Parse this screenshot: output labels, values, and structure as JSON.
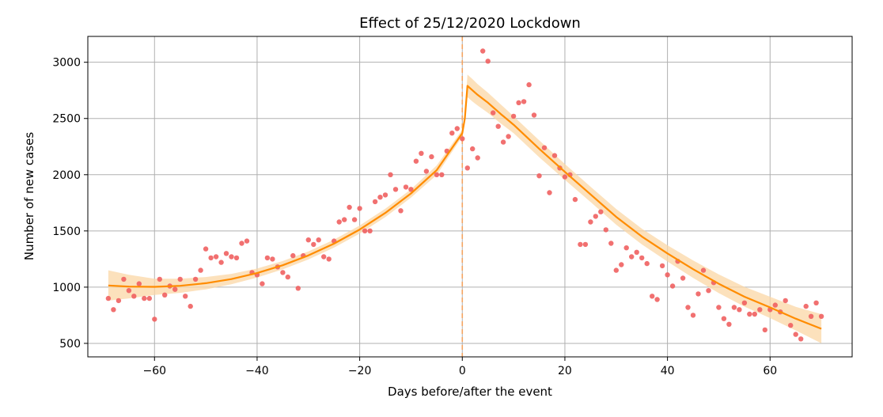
{
  "chart_data": {
    "type": "scatter",
    "title": "Effect of 25/12/2020 Lockdown",
    "xlabel": "Days before/after the event",
    "ylabel": "Number of new cases",
    "xlim": [
      -73,
      76
    ],
    "ylim": [
      380,
      3230
    ],
    "xticks": [
      -60,
      -40,
      -20,
      0,
      20,
      40,
      60
    ],
    "yticks": [
      500,
      1000,
      1500,
      2000,
      2500,
      3000
    ],
    "grid": true,
    "event_x": 0,
    "colors": {
      "points": "#f06060",
      "fit_line": "#ff8c00",
      "band": "#fbd7a6",
      "event_line": "#f4a460"
    },
    "observations": {
      "x": [
        -69,
        -68,
        -67,
        -66,
        -65,
        -64,
        -63,
        -62,
        -61,
        -60,
        -59,
        -58,
        -57,
        -56,
        -55,
        -54,
        -53,
        -52,
        -51,
        -50,
        -49,
        -48,
        -47,
        -46,
        -45,
        -44,
        -43,
        -42,
        -41,
        -40,
        -39,
        -38,
        -37,
        -36,
        -35,
        -34,
        -33,
        -32,
        -31,
        -30,
        -29,
        -28,
        -27,
        -26,
        -25,
        -24,
        -23,
        -22,
        -21,
        -20,
        -19,
        -18,
        -17,
        -16,
        -15,
        -14,
        -13,
        -12,
        -11,
        -10,
        -9,
        -8,
        -7,
        -6,
        -5,
        -4,
        -3,
        -2,
        -1,
        0,
        1,
        2,
        3,
        4,
        5,
        6,
        7,
        8,
        9,
        10,
        11,
        12,
        13,
        14,
        15,
        16,
        17,
        18,
        19,
        20,
        21,
        22,
        23,
        24,
        25,
        26,
        27,
        28,
        29,
        30,
        31,
        32,
        33,
        34,
        35,
        36,
        37,
        38,
        39,
        40,
        41,
        42,
        43,
        44,
        45,
        46,
        47,
        48,
        49,
        50,
        51,
        52,
        53,
        54,
        55,
        56,
        57,
        58,
        59,
        60,
        61,
        62,
        63,
        64,
        65,
        66,
        67,
        68,
        69,
        70
      ],
      "y": [
        900,
        800,
        880,
        1070,
        970,
        920,
        1030,
        900,
        900,
        715,
        1070,
        930,
        1010,
        980,
        1070,
        920,
        830,
        1070,
        1150,
        1340,
        1260,
        1270,
        1220,
        1300,
        1270,
        1260,
        1390,
        1410,
        1130,
        1110,
        1030,
        1260,
        1250,
        1180,
        1130,
        1090,
        1280,
        990,
        1280,
        1420,
        1380,
        1420,
        1270,
        1250,
        1410,
        1580,
        1600,
        1710,
        1600,
        1700,
        1500,
        1500,
        1760,
        1800,
        1820,
        2000,
        1870,
        1680,
        1890,
        1870,
        2120,
        2190,
        2030,
        2160,
        2000,
        2000,
        2210,
        2370,
        2410,
        2320,
        2060,
        2230,
        2150,
        3100,
        3010,
        2550,
        2430,
        2290,
        2340,
        2520,
        2640,
        2650,
        2800,
        2530,
        1990,
        2240,
        1840,
        2170,
        2060,
        1980,
        2000,
        1780,
        1380,
        1380,
        1580,
        1630,
        1670,
        1510,
        1390,
        1150,
        1200,
        1350,
        1270,
        1310,
        1260,
        1210,
        920,
        890,
        1190,
        1110,
        1010,
        1230,
        1080,
        820,
        750,
        940,
        1150,
        970,
        1040,
        820,
        720,
        670,
        820,
        800,
        860,
        760,
        760,
        800,
        620,
        800,
        840,
        780,
        880,
        660,
        580,
        540,
        830,
        740,
        860,
        740
      ]
    },
    "fit": {
      "x": [
        -69,
        -65,
        -60,
        -55,
        -50,
        -45,
        -40,
        -35,
        -30,
        -25,
        -20,
        -15,
        -10,
        -5,
        0,
        0.5,
        1,
        2,
        3,
        5,
        7.5,
        10,
        15,
        20,
        25,
        30,
        35,
        40,
        45,
        50,
        55,
        60,
        65,
        70
      ],
      "y": [
        1015,
        1005,
        1003,
        1012,
        1035,
        1072,
        1125,
        1195,
        1282,
        1387,
        1512,
        1660,
        1833,
        2040,
        2370,
        2500,
        2790,
        2750,
        2710,
        2640,
        2540,
        2445,
        2230,
        2025,
        1825,
        1625,
        1450,
        1300,
        1160,
        1030,
        915,
        820,
        720,
        630
      ],
      "band_upper": [
        1150,
        1110,
        1075,
        1075,
        1090,
        1118,
        1165,
        1232,
        1318,
        1422,
        1548,
        1697,
        1870,
        2082,
        2400,
        2530,
        2890,
        2850,
        2805,
        2730,
        2625,
        2520,
        2305,
        2095,
        1893,
        1695,
        1520,
        1372,
        1238,
        1113,
        1003,
        915,
        825,
        760
      ],
      "band_lower": [
        880,
        900,
        931,
        949,
        980,
        1026,
        1085,
        1158,
        1246,
        1352,
        1476,
        1623,
        1796,
        1998,
        2340,
        2470,
        2690,
        2650,
        2615,
        2550,
        2455,
        2370,
        2155,
        1955,
        1757,
        1555,
        1380,
        1228,
        1082,
        947,
        827,
        725,
        615,
        500
      ]
    }
  }
}
